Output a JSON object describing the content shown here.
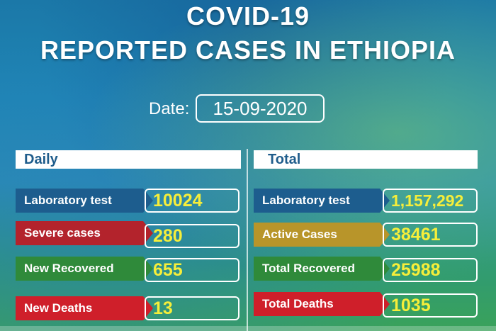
{
  "title_line1": "COVID-19",
  "title_line2": "REPORTED CASES IN ETHIOPIA",
  "date_label": "Date:",
  "date_value": "15-09-2020",
  "daily": {
    "header": "Daily",
    "rows": [
      {
        "label": "Laboratory test",
        "value": "10024",
        "color": "#1d5d8e"
      },
      {
        "label": "Severe cases",
        "value": "280",
        "color": "#b3232c"
      },
      {
        "label": "New Recovered",
        "value": "655",
        "color": "#2f8a3a"
      },
      {
        "label": "New Deaths",
        "value": "13",
        "color": "#cf1f2a"
      }
    ]
  },
  "total": {
    "header": "Total",
    "rows": [
      {
        "label": "Laboratory test",
        "value": "1,157,292",
        "color": "#1d5d8e"
      },
      {
        "label": "Active Cases",
        "value": "38461",
        "color": "#b8952a"
      },
      {
        "label": "Total Recovered",
        "value": "25988",
        "color": "#2f8a3a"
      },
      {
        "label": "Total Deaths",
        "value": "1035",
        "color": "#cf1f2a"
      }
    ]
  }
}
